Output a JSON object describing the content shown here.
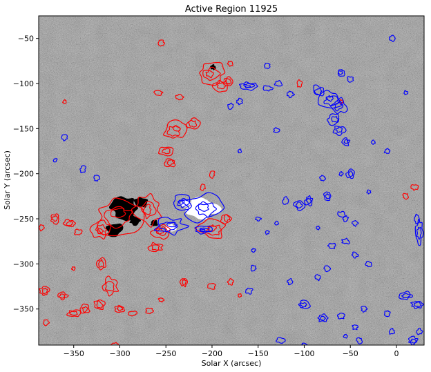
{
  "chart_data": {
    "type": "heatmap",
    "title": "Active Region 11925",
    "xlabel": "Solar X (arcsec)",
    "ylabel": "Solar Y (arcsec)",
    "xlim": [
      -388,
      30
    ],
    "ylim": [
      -390,
      -25
    ],
    "xticks": [
      -350,
      -300,
      -250,
      -200,
      -150,
      -100,
      -50,
      0
    ],
    "yticks": [
      -50,
      -100,
      -150,
      -200,
      -250,
      -300,
      -350
    ],
    "xtick_labels": [
      "−350",
      "−300",
      "−250",
      "−200",
      "−150",
      "−100",
      "−50",
      "0"
    ],
    "ytick_labels": [
      "−50",
      "−100",
      "−150",
      "−200",
      "−250",
      "−300",
      "−350"
    ],
    "colormap": "gray",
    "contour_colors": {
      "negative": "#ff0000",
      "positive": "#0000ff"
    },
    "strong_negative": [
      {
        "x": -295,
        "y": -238,
        "rx": 14,
        "ry": 12
      },
      {
        "x": -306,
        "y": -262,
        "rx": 9,
        "ry": 7
      },
      {
        "x": -277,
        "y": -232,
        "rx": 7,
        "ry": 6
      },
      {
        "x": -284,
        "y": -252,
        "rx": 6,
        "ry": 5
      },
      {
        "x": -263,
        "y": -255,
        "rx": 4,
        "ry": 4
      },
      {
        "x": -199,
        "y": -82,
        "rx": 3,
        "ry": 3
      }
    ],
    "strong_positive": [
      {
        "x": -210,
        "y": -239,
        "rx": 17,
        "ry": 11
      },
      {
        "x": -245,
        "y": -260,
        "rx": 6,
        "ry": 4
      },
      {
        "x": -228,
        "y": -233,
        "rx": 5,
        "ry": 4
      }
    ],
    "negative_contours": [
      [
        -300,
        -248,
        25,
        20
      ],
      [
        -270,
        -240,
        14,
        16
      ],
      [
        -320,
        -262,
        10,
        9
      ],
      [
        -255,
        -265,
        10,
        8
      ],
      [
        -200,
        -262,
        14,
        10
      ],
      [
        -185,
        -250,
        6,
        6
      ],
      [
        -262,
        -282,
        8,
        5
      ],
      [
        -200,
        -88,
        14,
        12
      ],
      [
        -190,
        -103,
        8,
        6
      ],
      [
        -182,
        -97,
        5,
        5
      ],
      [
        -240,
        -152,
        12,
        10
      ],
      [
        -220,
        -145,
        7,
        6
      ],
      [
        -250,
        -175,
        7,
        5
      ],
      [
        -246,
        -188,
        6,
        5
      ],
      [
        -258,
        -110,
        4,
        3
      ],
      [
        -235,
        -115,
        4,
        3
      ],
      [
        -255,
        -55,
        3,
        3
      ],
      [
        -180,
        -78,
        3,
        3
      ],
      [
        -320,
        -300,
        5,
        7
      ],
      [
        -310,
        -325,
        8,
        10
      ],
      [
        -322,
        -345,
        6,
        7
      ],
      [
        -300,
        -350,
        5,
        4
      ],
      [
        -286,
        -355,
        4,
        3
      ],
      [
        -268,
        -352,
        4,
        3
      ],
      [
        -230,
        -320,
        4,
        5
      ],
      [
        -200,
        -325,
        4,
        3
      ],
      [
        -382,
        -330,
        5,
        5
      ],
      [
        -362,
        -335,
        5,
        4
      ],
      [
        -350,
        -355,
        7,
        4
      ],
      [
        -338,
        -350,
        5,
        5
      ],
      [
        -380,
        -365,
        3,
        3
      ],
      [
        -305,
        -390,
        4,
        3
      ],
      [
        -370,
        -250,
        5,
        5
      ],
      [
        -355,
        -255,
        6,
        4
      ],
      [
        -345,
        -265,
        4,
        3
      ],
      [
        -385,
        -260,
        3,
        3
      ],
      [
        -200,
        -200,
        3,
        4
      ],
      [
        -210,
        -215,
        3,
        3
      ],
      [
        -105,
        -100,
        3,
        4
      ],
      [
        -60,
        -120,
        2,
        2
      ],
      [
        20,
        -215,
        4,
        3
      ],
      [
        10,
        -225,
        3,
        3
      ],
      [
        -360,
        -120,
        2,
        2
      ],
      [
        -350,
        -305,
        2,
        2
      ],
      [
        -255,
        -340,
        3,
        2
      ],
      [
        -170,
        -335,
        2,
        2
      ],
      [
        -180,
        -320,
        3,
        3
      ]
    ],
    "positive_contours": [
      [
        -210,
        -238,
        20,
        14
      ],
      [
        -245,
        -258,
        16,
        9
      ],
      [
        -232,
        -232,
        10,
        8
      ],
      [
        -210,
        -262,
        9,
        4
      ],
      [
        -160,
        -103,
        10,
        4
      ],
      [
        -140,
        -105,
        5,
        3
      ],
      [
        -128,
        -100,
        4,
        3
      ],
      [
        -115,
        -112,
        4,
        3
      ],
      [
        -85,
        -108,
        6,
        6
      ],
      [
        -72,
        -118,
        12,
        10
      ],
      [
        -62,
        -125,
        8,
        8
      ],
      [
        -68,
        -140,
        6,
        6
      ],
      [
        -62,
        -152,
        6,
        5
      ],
      [
        -55,
        -165,
        4,
        4
      ],
      [
        -60,
        -88,
        4,
        4
      ],
      [
        -50,
        -95,
        3,
        3
      ],
      [
        -120,
        -230,
        3,
        4
      ],
      [
        -105,
        -235,
        6,
        5
      ],
      [
        -95,
        -230,
        4,
        5
      ],
      [
        -75,
        -225,
        4,
        5
      ],
      [
        -60,
        -245,
        4,
        3
      ],
      [
        -55,
        -250,
        3,
        3
      ],
      [
        -45,
        -255,
        3,
        3
      ],
      [
        -50,
        -200,
        4,
        5
      ],
      [
        -80,
        -205,
        3,
        3
      ],
      [
        -10,
        -175,
        3,
        3
      ],
      [
        -130,
        -152,
        3,
        3
      ],
      [
        -180,
        -125,
        3,
        3
      ],
      [
        -170,
        -120,
        3,
        3
      ],
      [
        -140,
        -80,
        3,
        3
      ],
      [
        -170,
        -175,
        2,
        2
      ],
      [
        -340,
        -195,
        3,
        4
      ],
      [
        -325,
        -205,
        3,
        3
      ],
      [
        -360,
        -160,
        3,
        3
      ],
      [
        -370,
        -185,
        2,
        2
      ],
      [
        -155,
        -305,
        3,
        3
      ],
      [
        -160,
        -330,
        4,
        3
      ],
      [
        -115,
        -320,
        3,
        3
      ],
      [
        -100,
        -345,
        6,
        4
      ],
      [
        -80,
        -360,
        5,
        4
      ],
      [
        -60,
        -358,
        4,
        3
      ],
      [
        -45,
        -370,
        3,
        3
      ],
      [
        -35,
        -350,
        3,
        3
      ],
      [
        -85,
        -315,
        3,
        3
      ],
      [
        -75,
        -305,
        3,
        3
      ],
      [
        -70,
        -280,
        4,
        3
      ],
      [
        -55,
        -275,
        4,
        3
      ],
      [
        -45,
        -290,
        3,
        3
      ],
      [
        -30,
        -300,
        3,
        3
      ],
      [
        -10,
        -355,
        3,
        3
      ],
      [
        -5,
        -375,
        3,
        3
      ],
      [
        10,
        -335,
        7,
        4
      ],
      [
        22,
        -345,
        6,
        4
      ],
      [
        25,
        -265,
        4,
        12
      ],
      [
        22,
        -250,
        3,
        5
      ],
      [
        18,
        -385,
        5,
        4
      ],
      [
        25,
        -375,
        3,
        3
      ],
      [
        -125,
        -385,
        5,
        3
      ],
      [
        -100,
        -390,
        3,
        2
      ],
      [
        -40,
        -385,
        3,
        3
      ],
      [
        -55,
        -380,
        2,
        2
      ],
      [
        -130,
        -255,
        2,
        2
      ],
      [
        -140,
        -265,
        2,
        2
      ],
      [
        -25,
        -165,
        2,
        2
      ],
      [
        -155,
        -285,
        2,
        2
      ],
      [
        -150,
        -250,
        3,
        2
      ],
      [
        -85,
        -260,
        2,
        2
      ],
      [
        -30,
        -220,
        2,
        2
      ],
      [
        -60,
        -200,
        2,
        2
      ],
      [
        -5,
        -50,
        3,
        3
      ],
      [
        10,
        -110,
        2,
        2
      ]
    ]
  }
}
